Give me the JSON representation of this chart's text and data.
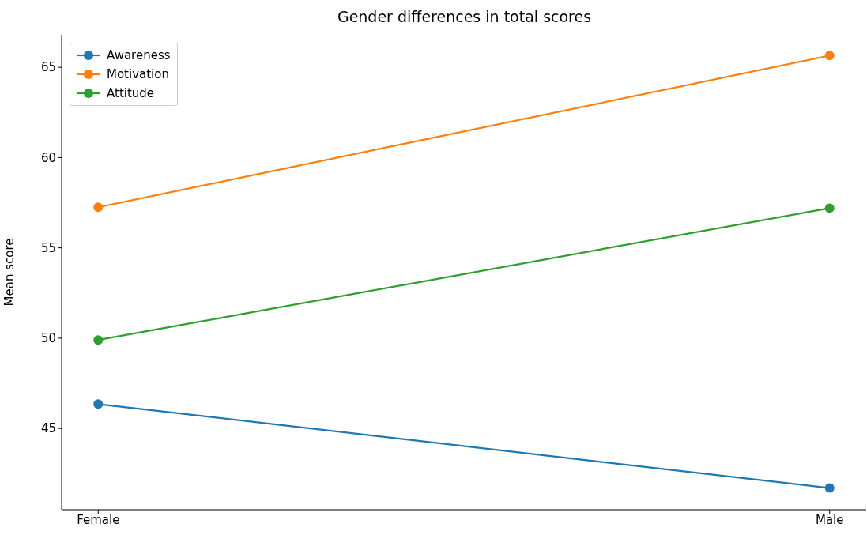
{
  "chart_data": {
    "type": "line",
    "title": "Gender differences in total scores",
    "ylabel": "Mean score",
    "categories": [
      "Female",
      "Male"
    ],
    "series": [
      {
        "name": "Awareness",
        "color": "#1f77b4",
        "values": [
          46.35,
          41.7
        ]
      },
      {
        "name": "Motivation",
        "color": "#ff7f0e",
        "values": [
          57.25,
          65.65
        ]
      },
      {
        "name": "Attitude",
        "color": "#2ca02c",
        "values": [
          49.9,
          57.2
        ]
      }
    ],
    "ylim": [
      40.5,
      66.8
    ],
    "yticks": [
      45,
      50,
      55,
      60,
      65
    ],
    "grid": false,
    "legend": "top left",
    "marker": "circle",
    "line_style": "solid"
  }
}
